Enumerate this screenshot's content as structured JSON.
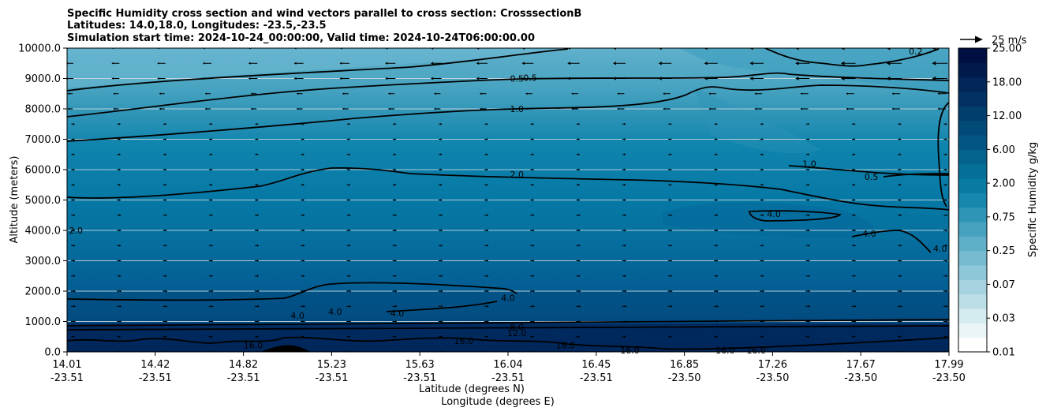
{
  "chart_data": {
    "type": "contour",
    "title_lines": [
      "Specific Humidity cross section and wind vectors parallel to cross section: CrosssectionB",
      "Latitudes: 14.0,18.0, Longitudes: -23.5,-23.5",
      "Simulation start time: 2024-10-24_00:00:00, Valid time: 2024-10-24T06:00:00.00"
    ],
    "xlabel_lat": "Latitude (degrees N)",
    "xlabel_lon": "Longitude (degrees E)",
    "ylabel": "Altitude (meters)",
    "x_ticks": [
      {
        "lat": "14.01",
        "lon": "-23.51"
      },
      {
        "lat": "14.42",
        "lon": "-23.51"
      },
      {
        "lat": "14.82",
        "lon": "-23.51"
      },
      {
        "lat": "15.23",
        "lon": "-23.51"
      },
      {
        "lat": "15.63",
        "lon": "-23.51"
      },
      {
        "lat": "16.04",
        "lon": "-23.51"
      },
      {
        "lat": "16.45",
        "lon": "-23.51"
      },
      {
        "lat": "16.85",
        "lon": "-23.50"
      },
      {
        "lat": "17.26",
        "lon": "-23.50"
      },
      {
        "lat": "17.67",
        "lon": "-23.50"
      },
      {
        "lat": "17.99",
        "lon": "-23.50"
      }
    ],
    "xlim": [
      14.01,
      17.99
    ],
    "ylim": [
      0,
      10000
    ],
    "y_ticks": [
      "0.0",
      "1000.0",
      "2000.0",
      "3000.0",
      "4000.0",
      "5000.0",
      "6000.0",
      "7000.0",
      "8000.0",
      "9000.0",
      "10000.0"
    ],
    "grid": "horizontal",
    "colorbar": {
      "label": "Specific Humidity g/kg",
      "tick_labels": [
        "0.01",
        "0.03",
        "0.07",
        "0.25",
        "0.75",
        "2.00",
        "6.00",
        "12.00",
        "18.00",
        "25.00"
      ],
      "colors": [
        "#ffffff",
        "#eaf5f7",
        "#d4ebef",
        "#bcdfe7",
        "#a6d3df",
        "#8ec7d7",
        "#76bbcf",
        "#5eafc7",
        "#46a2bf",
        "#2e95b6",
        "#1687ad",
        "#087ba3",
        "#056f98",
        "#04638d",
        "#035683",
        "#024a78",
        "#023e6d",
        "#013162",
        "#012657",
        "#001a4c",
        "#000f42"
      ]
    },
    "contour_levels": [
      "0.5",
      "1.0",
      "2.0",
      "4.0",
      "8.0",
      "12.0",
      "16.0"
    ],
    "contour_labels": [
      {
        "text": "0.5",
        "x": 16.04,
        "y": 9000
      },
      {
        "text": "0.5",
        "x": 16.1,
        "y": 9020
      },
      {
        "text": "1.0",
        "x": 16.04,
        "y": 8000
      },
      {
        "text": "2.0",
        "x": 16.04,
        "y": 5850
      },
      {
        "text": "2.0",
        "x": 14.05,
        "y": 4000
      },
      {
        "text": "4.0",
        "x": 16.0,
        "y": 1780
      },
      {
        "text": "4.0",
        "x": 15.05,
        "y": 1200
      },
      {
        "text": "4.0",
        "x": 15.22,
        "y": 1330
      },
      {
        "text": "4.0",
        "x": 15.5,
        "y": 1270
      },
      {
        "text": "4.0",
        "x": 17.2,
        "y": 4550
      },
      {
        "text": "4.0",
        "x": 17.63,
        "y": 3900
      },
      {
        "text": "4.0",
        "x": 17.95,
        "y": 3400
      },
      {
        "text": "1.0",
        "x": 17.36,
        "y": 6200
      },
      {
        "text": "0.5",
        "x": 17.64,
        "y": 5760
      },
      {
        "text": "0.2",
        "x": 17.84,
        "y": 9900
      },
      {
        "text": "8.0",
        "x": 16.04,
        "y": 820
      },
      {
        "text": "12.0",
        "x": 16.04,
        "y": 620
      },
      {
        "text": "16.0",
        "x": 14.85,
        "y": 220
      },
      {
        "text": "16.0",
        "x": 15.8,
        "y": 370
      },
      {
        "text": "16.0",
        "x": 16.26,
        "y": 220
      },
      {
        "text": "16.0",
        "x": 16.55,
        "y": 50
      },
      {
        "text": "16.0",
        "x": 16.98,
        "y": 50
      },
      {
        "text": "16.0",
        "x": 17.12,
        "y": 50
      }
    ],
    "wind_reference": {
      "label": "25 m/s",
      "speed": 25
    }
  }
}
